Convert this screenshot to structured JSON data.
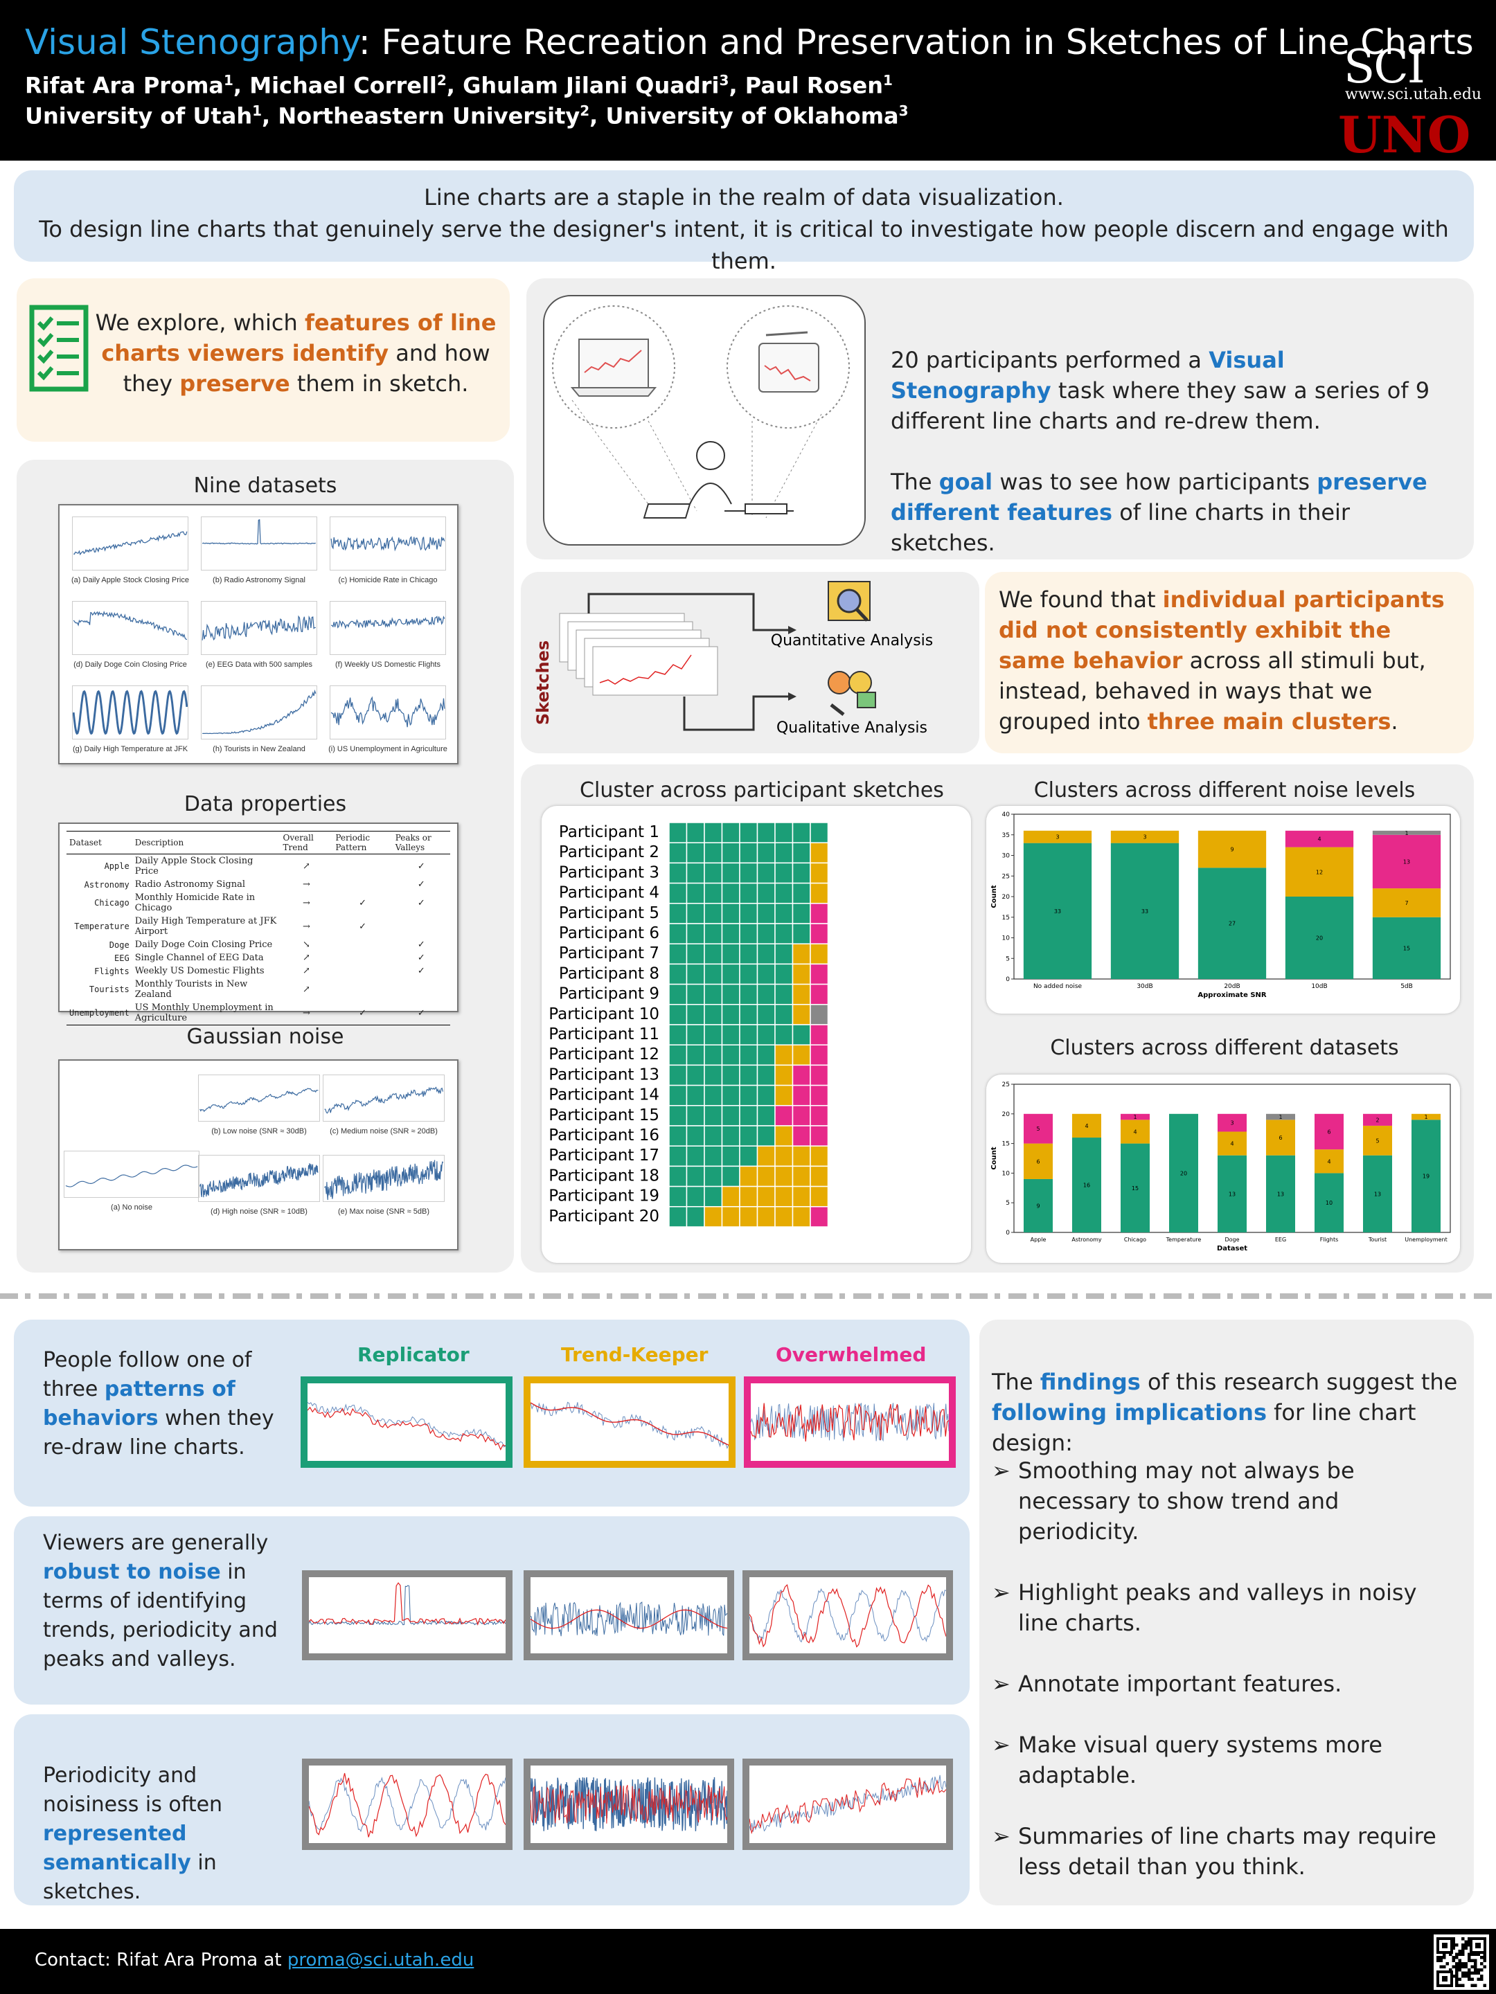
{
  "header": {
    "title_highlight": "Visual Stenography",
    "title_rest": ": Feature Recreation and Preservation in Sketches of Line Charts",
    "authors": [
      {
        "name": "Rifat Ara Proma",
        "sup": "1"
      },
      {
        "name": "Michael Correll",
        "sup": "2"
      },
      {
        "name": "Ghulam Jilani Quadri",
        "sup": "3"
      },
      {
        "name": "Paul Rosen",
        "sup": "1"
      }
    ],
    "affiliations": [
      {
        "name": "University of Utah",
        "sup": "1"
      },
      {
        "name": "Northeastern University",
        "sup": "2"
      },
      {
        "name": "University of Oklahoma",
        "sup": "3"
      }
    ],
    "logo_sci": "SCI",
    "logo_url": "www.sci.utah.edu",
    "logo_uno": "UNO"
  },
  "intro": {
    "line1": "Line charts are a staple in the realm of data visualization.",
    "line2": "To design line charts that genuinely serve the designer's intent, it is critical to investigate how people discern and engage with them."
  },
  "explore": {
    "t1": "We explore, which ",
    "h1": "features of line charts viewers identify",
    "t2": " and how they ",
    "h2": "preserve",
    "t3": " them in sketch."
  },
  "task": {
    "t1": "20 participants performed a ",
    "h1": "Visual Stenography",
    "t2": " task where they saw a series of 9 different line charts and re-drew them.",
    "t3": "The ",
    "h2": "goal",
    "t4": " was to see how participants ",
    "h3": "preserve different features",
    "t5": " of line charts in their sketches."
  },
  "datasets": {
    "heading": "Nine datasets",
    "captions": [
      "(a) Daily Apple Stock Closing Price",
      "(b) Radio Astronomy Signal",
      "(c) Homicide Rate in Chicago",
      "(d) Daily Doge Coin Closing Price",
      "(e) EEG Data with 500 samples",
      "(f) Weekly US Domestic Flights",
      "(g) Daily High Temperature at JFK",
      "(h) Tourists in New Zealand",
      "(i) US Unemployment in Agriculture"
    ]
  },
  "properties": {
    "heading": "Data properties",
    "columns": [
      "Dataset",
      "Description",
      "Overall Trend",
      "Periodic Pattern",
      "Peaks or Valleys"
    ],
    "rows": [
      [
        "Apple",
        "Daily Apple Stock Closing Price",
        "↗",
        "",
        "✓"
      ],
      [
        "Astronomy",
        "Radio Astronomy Signal",
        "→",
        "",
        "✓"
      ],
      [
        "Chicago",
        "Monthly Homicide Rate in Chicago",
        "→",
        "✓",
        "✓"
      ],
      [
        "Temperature",
        "Daily High Temperature at JFK Airport",
        "→",
        "✓",
        ""
      ],
      [
        "Doge",
        "Daily Doge Coin Closing Price",
        "↘",
        "",
        "✓"
      ],
      [
        "EEG",
        "Single Channel of EEG Data",
        "↗",
        "",
        "✓"
      ],
      [
        "Flights",
        "Weekly US Domestic Flights",
        "↗",
        "",
        "✓"
      ],
      [
        "Tourists",
        "Monthly Tourists in New Zealand",
        "↗",
        "",
        ""
      ],
      [
        "Unemployment",
        "US Monthly Unemployment in Agriculture",
        "→",
        "✓",
        "✓"
      ]
    ]
  },
  "noise": {
    "heading": "Gaussian noise",
    "captions": [
      "(a) No noise",
      "(b) Low noise (SNR ≈ 30dB)",
      "(c) Medium noise (SNR ≈ 20dB)",
      "(d) High noise (SNR ≈ 10dB)",
      "(e) Max noise (SNR ≈ 5dB)"
    ]
  },
  "analysis": {
    "sketches_label": "Sketches",
    "quant": "Quantitative Analysis",
    "qual": "Qualitative Analysis"
  },
  "found": {
    "t1": "We found that ",
    "h1": "individual participants did not consistently exhibit the same behavior",
    "t2": " across all stimuli but, instead, behaved in ways that we grouped into ",
    "h2": "three main clusters",
    "t3": "."
  },
  "colors": {
    "replicator": "#1b9e77",
    "trend": "#e6ab02",
    "overwhelmed": "#e7298a",
    "other": "#888888",
    "accent_blue": "#1f77c4",
    "accent_orange": "#d0661b"
  },
  "chart_data": [
    {
      "type": "heatmap",
      "title": "Cluster across participant sketches",
      "rows": [
        "Participant 1",
        "Participant 2",
        "Participant 3",
        "Participant 4",
        "Participant 5",
        "Participant 6",
        "Participant 7",
        "Participant 8",
        "Participant 9",
        "Participant 10",
        "Participant 11",
        "Participant 12",
        "Participant 13",
        "Participant 14",
        "Participant 15",
        "Participant 16",
        "Participant 17",
        "Participant 18",
        "Participant 19",
        "Participant 20"
      ],
      "legend": {
        "R": "Replicator",
        "T": "Trend-Keeper",
        "O": "Overwhelmed",
        "X": "Other"
      },
      "values": [
        "RRRRRRRRR",
        "RRRRRRRRT",
        "RRRRRRRRT",
        "RRRRRRRRT",
        "RRRRRRRRO",
        "RRRRRRRRO",
        "RRRRRRRTT",
        "RRRRRRRTO",
        "RRRRRRRTO",
        "RRRRRRRTX",
        "RRRRRRRRO",
        "RRRRRRTTO",
        "RRRRRRTOO",
        "RRRRRRTOO",
        "RRRRRROOO",
        "RRRRRRTOO",
        "RRRRRTTTT",
        "RRRRTTTTT",
        "RRRTTTTTT",
        "RRTTTTTTO"
      ]
    },
    {
      "type": "bar",
      "title": "Clusters across different noise levels",
      "xlabel": "Approximate SNR",
      "ylabel": "Count",
      "ylim": [
        0,
        40
      ],
      "yticks": [
        0,
        5,
        10,
        15,
        20,
        25,
        30,
        35,
        40
      ],
      "categories": [
        "No added noise",
        "30dB",
        "20dB",
        "10dB",
        "5dB"
      ],
      "series": [
        {
          "values": [
            33,
            33,
            27,
            20,
            15
          ]
        },
        {
          "values": [
            3,
            3,
            9,
            12,
            7
          ]
        },
        {
          "values": [
            0,
            0,
            0,
            4,
            13
          ]
        },
        {
          "values": [
            0,
            0,
            0,
            0,
            1
          ]
        }
      ]
    },
    {
      "type": "bar",
      "title": "Clusters across different datasets",
      "xlabel": "Dataset",
      "ylabel": "Count",
      "ylim": [
        0,
        25
      ],
      "yticks": [
        0,
        5,
        10,
        15,
        20,
        25
      ],
      "categories": [
        "Apple",
        "Astronomy",
        "Chicago",
        "Temperature",
        "Doge",
        "EEG",
        "Flights",
        "Tourist",
        "Unemployment"
      ],
      "series": [
        {
          "values": [
            9,
            16,
            15,
            20,
            13,
            13,
            10,
            13,
            19
          ]
        },
        {
          "values": [
            6,
            4,
            4,
            0,
            4,
            6,
            4,
            5,
            1
          ]
        },
        {
          "values": [
            5,
            0,
            1,
            0,
            3,
            0,
            6,
            2,
            0
          ]
        },
        {
          "values": [
            0,
            0,
            0,
            0,
            0,
            1,
            0,
            0,
            0
          ]
        }
      ]
    }
  ],
  "behaviors": {
    "intro_t1": "People follow one of three ",
    "intro_h1": "patterns of behaviors",
    "intro_t2": " when they re-draw line charts.",
    "replicator": "Replicator",
    "trend": "Trend-Keeper",
    "overwhelmed": "Overwhelmed"
  },
  "robust": {
    "t1": "Viewers are generally ",
    "h1": "robust to noise",
    "t2": " in terms of identifying trends, periodicity and peaks and valleys."
  },
  "semantic": {
    "t1": "Periodicity and noisiness is often ",
    "h1": "represented semantically",
    "t2": " in sketches."
  },
  "implications": {
    "t1": "The ",
    "h1": "findings",
    "t2": " of this research suggest the ",
    "h2": "following implications",
    "t3": " for line chart design:",
    "items": [
      "Smoothing may not always be necessary to show trend and periodicity.",
      "Highlight peaks and valleys in noisy line charts.",
      "Annotate important features.",
      "Make visual query systems more adaptable.",
      "Summaries of line charts may require less detail than you think."
    ]
  },
  "footer": {
    "contact_label": "Contact:  Rifat Ara Proma at ",
    "email": "proma@sci.utah.edu"
  }
}
